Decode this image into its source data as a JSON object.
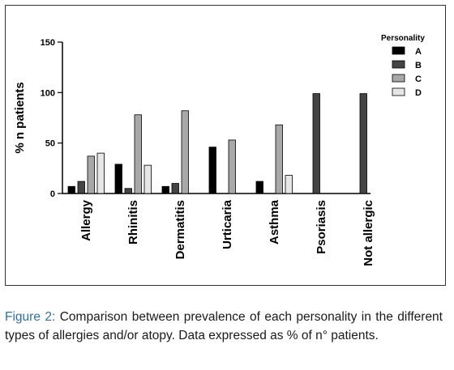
{
  "chart_data": {
    "type": "bar",
    "ylabel": "% n patients",
    "ylim": [
      0,
      150
    ],
    "yticks": [
      0,
      50,
      100,
      150
    ],
    "categories": [
      "Allergy",
      "Rhinitis",
      "Dermatitis",
      "Urticaria",
      "Asthma",
      "Psoriasis",
      "Not allergic"
    ],
    "legend": {
      "title": "Personality",
      "position": "top-right"
    },
    "grid": false,
    "series": [
      {
        "name": "A",
        "color": "#000000",
        "values": [
          7,
          29,
          7,
          46,
          12,
          0,
          0
        ]
      },
      {
        "name": "B",
        "color": "#444444",
        "values": [
          12,
          5,
          10,
          0,
          0,
          99,
          99
        ]
      },
      {
        "name": "C",
        "color": "#a8a8a8",
        "values": [
          37,
          78,
          82,
          53,
          68,
          0,
          0
        ]
      },
      {
        "name": "D",
        "color": "#e6e6e6",
        "values": [
          40,
          28,
          0,
          0,
          18,
          0,
          0
        ]
      }
    ]
  },
  "caption": {
    "label": "Figure 2:",
    "text": " Comparison between prevalence of each personality in the different types of allergies and/or atopy. Data expressed as % of n° patients."
  }
}
